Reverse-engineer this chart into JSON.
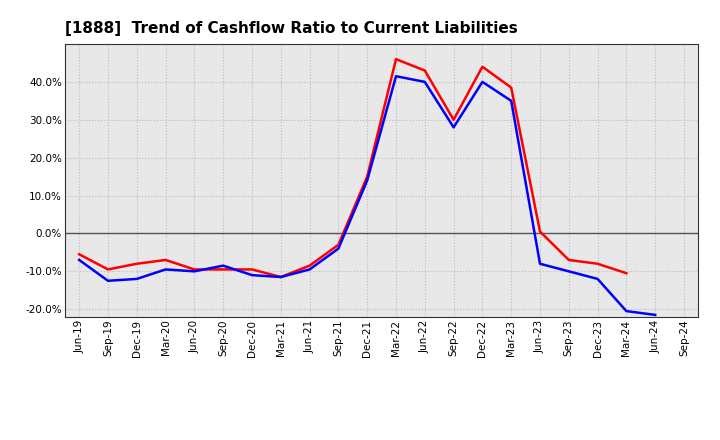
{
  "title": "[1888]  Trend of Cashflow Ratio to Current Liabilities",
  "x_labels": [
    "Jun-19",
    "Sep-19",
    "Dec-19",
    "Mar-20",
    "Jun-20",
    "Sep-20",
    "Dec-20",
    "Mar-21",
    "Jun-21",
    "Sep-21",
    "Dec-21",
    "Mar-22",
    "Jun-22",
    "Sep-22",
    "Dec-22",
    "Mar-23",
    "Jun-23",
    "Sep-23",
    "Dec-23",
    "Mar-24",
    "Jun-24",
    "Sep-24"
  ],
  "operating_cf": [
    -5.5,
    -9.5,
    -8.0,
    -7.0,
    -9.5,
    -9.5,
    -9.5,
    -11.5,
    -8.5,
    -3.0,
    15.0,
    46.0,
    43.0,
    30.0,
    44.0,
    38.5,
    0.5,
    -7.0,
    -8.0,
    -10.5,
    null,
    null
  ],
  "free_cf": [
    -7.0,
    -12.5,
    -12.0,
    -9.5,
    -10.0,
    -8.5,
    -11.0,
    -11.5,
    -9.5,
    -4.0,
    14.0,
    41.5,
    40.0,
    28.0,
    40.0,
    35.0,
    -8.0,
    -10.0,
    -12.0,
    -20.5,
    -21.5,
    null
  ],
  "operating_color": "#ff0000",
  "free_color": "#0000ff",
  "ylim": [
    -22,
    50
  ],
  "yticks": [
    -20.0,
    -10.0,
    0.0,
    10.0,
    20.0,
    30.0,
    40.0
  ],
  "plot_bg_color": "#e8e8e8",
  "fig_bg_color": "#ffffff",
  "grid_color": "#bbbbbb",
  "zero_line_color": "#555555",
  "title_fontsize": 11,
  "tick_fontsize": 7.5,
  "legend_fontsize": 8
}
